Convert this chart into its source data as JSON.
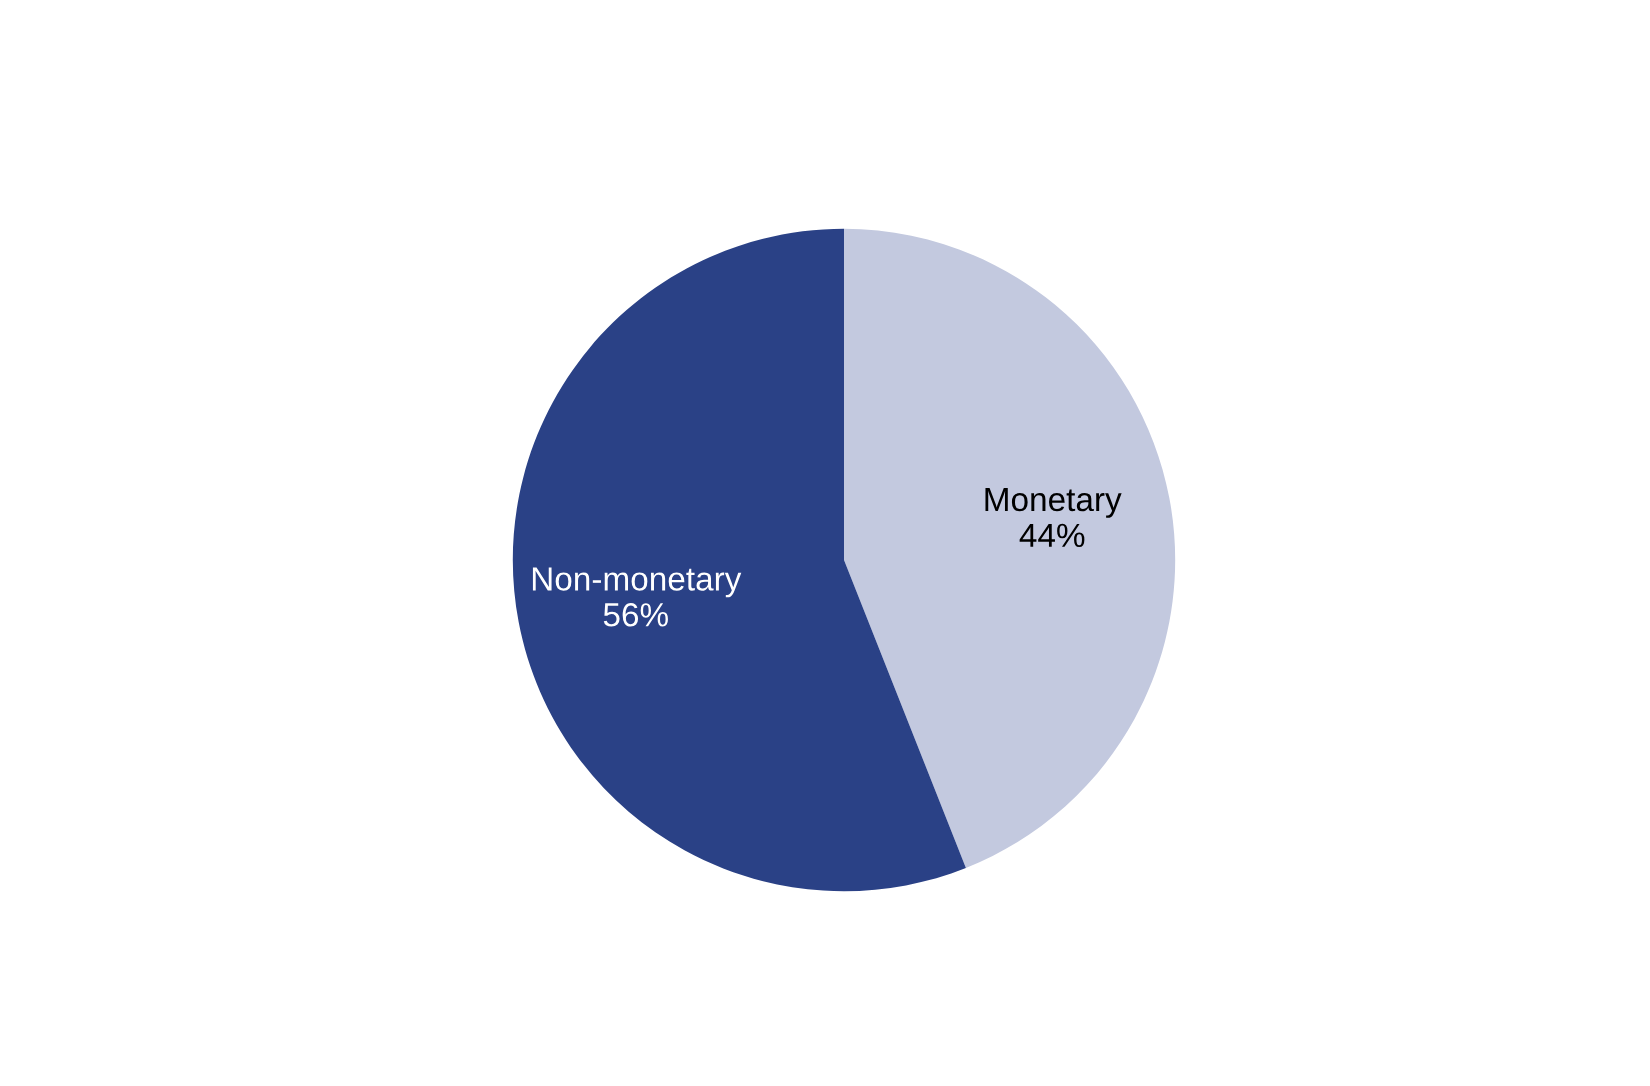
{
  "chart_data": {
    "type": "pie",
    "categories": [
      "Monetary",
      "Non-monetary"
    ],
    "values": [
      44,
      56
    ],
    "value_labels": [
      "44%",
      "56%"
    ],
    "colors": [
      "#c3c9df",
      "#2a4186"
    ],
    "legend": false
  }
}
